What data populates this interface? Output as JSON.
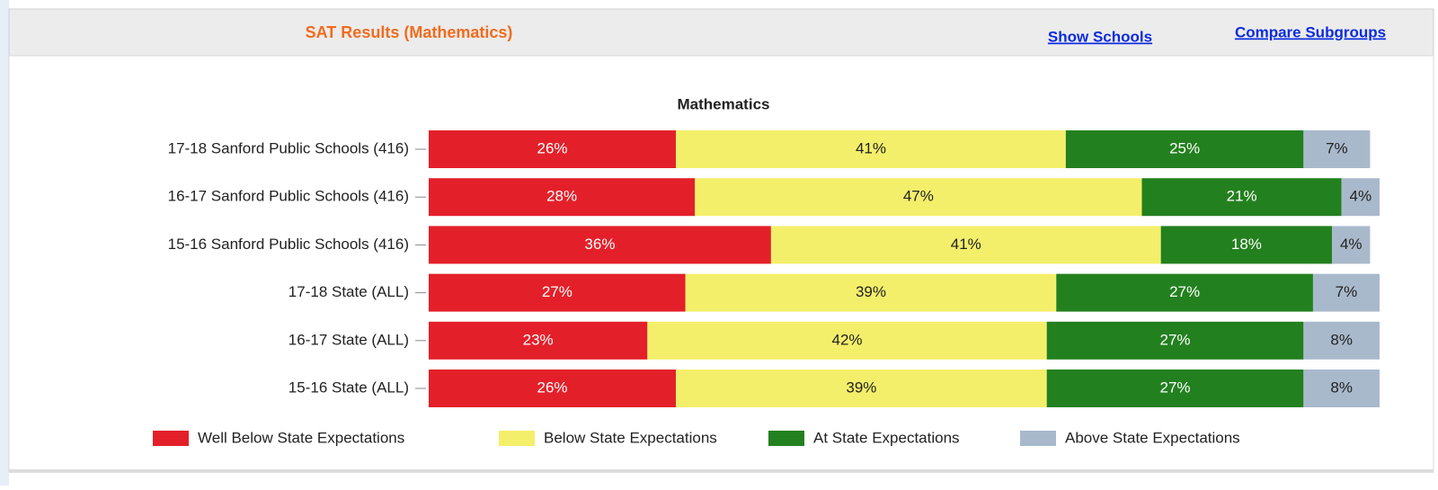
{
  "header": {
    "title": "SAT Results (Mathematics)",
    "links": [
      "Show Schools",
      "Compare Subgroups"
    ]
  },
  "chart_data": {
    "type": "stacked-bar-horizontal",
    "title": "Mathematics",
    "categories": [
      "17-18 Sanford Public Schools (416)",
      "16-17 Sanford Public Schools (416)",
      "15-16 Sanford Public Schools (416)",
      "17-18 State (ALL)",
      "16-17 State (ALL)",
      "15-16 State (ALL)"
    ],
    "xlim": [
      0,
      100
    ],
    "series": [
      {
        "name": "Well Below State Expectations",
        "color": "#e3202a",
        "label_color": "#ffffff",
        "values": [
          26,
          28,
          36,
          27,
          23,
          26
        ],
        "value_labels": [
          "26%",
          "28%",
          "36%",
          "27%",
          "23%",
          "26%"
        ]
      },
      {
        "name": "Below State Expectations",
        "color": "#f4ef6a",
        "label_color": "#222222",
        "values": [
          41,
          47,
          41,
          39,
          42,
          39
        ],
        "value_labels": [
          "41%",
          "47%",
          "41%",
          "39%",
          "42%",
          "39%"
        ]
      },
      {
        "name": "At State Expectations",
        "color": "#23801f",
        "label_color": "#ffffff",
        "values": [
          25,
          21,
          18,
          27,
          27,
          27
        ],
        "value_labels": [
          "25%",
          "21%",
          "18%",
          "27%",
          "27%",
          "27%"
        ]
      },
      {
        "name": "Above State Expectations",
        "color": "#a9b9cc",
        "label_color": "#222222",
        "values": [
          7,
          4,
          4,
          7,
          8,
          8
        ],
        "value_labels": [
          "7%",
          "4%",
          "4%",
          "7%",
          "8%",
          "8%"
        ]
      }
    ]
  }
}
